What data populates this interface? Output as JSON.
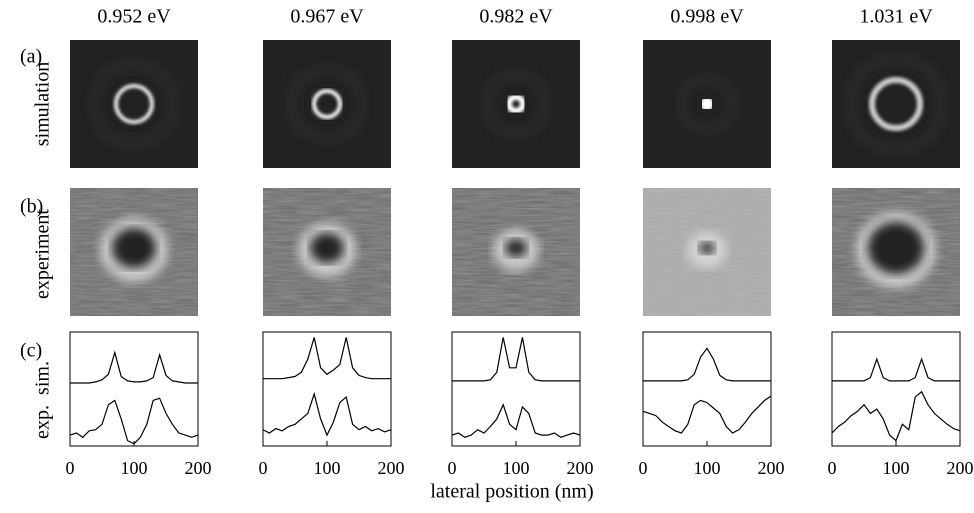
{
  "row_labels": [
    "(a)",
    "(b)",
    "(c)"
  ],
  "row_titles": [
    "simulation",
    "experiment"
  ],
  "trace_labels": [
    "sim.",
    "exp."
  ],
  "xlabel": "lateral position (nm)",
  "chart_data": [
    {
      "type": "line",
      "title": "0.952 eV",
      "x": [
        0,
        10,
        20,
        30,
        40,
        50,
        60,
        70,
        80,
        90,
        100,
        110,
        120,
        130,
        140,
        150,
        160,
        170,
        180,
        190,
        200
      ],
      "xlim": [
        0,
        200
      ],
      "xticks": [
        0,
        100,
        200
      ],
      "ylim": [
        0,
        1.05
      ],
      "series": [
        {
          "color": "#000000",
          "values": [
            0.58,
            0.58,
            0.58,
            0.58,
            0.59,
            0.61,
            0.66,
            0.86,
            0.64,
            0.6,
            0.59,
            0.59,
            0.6,
            0.63,
            0.84,
            0.65,
            0.6,
            0.59,
            0.58,
            0.58,
            0.58
          ]
        },
        {
          "color": "#000000",
          "values": [
            0.1,
            0.12,
            0.08,
            0.14,
            0.15,
            0.2,
            0.38,
            0.42,
            0.25,
            0.05,
            0.02,
            0.08,
            0.2,
            0.42,
            0.44,
            0.3,
            0.2,
            0.12,
            0.1,
            0.08,
            0.1
          ]
        }
      ]
    },
    {
      "type": "line",
      "title": "0.967 eV",
      "x": [
        0,
        10,
        20,
        30,
        40,
        50,
        60,
        70,
        80,
        90,
        100,
        110,
        120,
        130,
        140,
        150,
        160,
        170,
        180,
        190,
        200
      ],
      "xlim": [
        0,
        200
      ],
      "xticks": [
        0,
        100,
        200
      ],
      "ylim": [
        0,
        1.05
      ],
      "series": [
        {
          "color": "#000000",
          "values": [
            0.62,
            0.62,
            0.62,
            0.62,
            0.63,
            0.64,
            0.68,
            0.8,
            1.0,
            0.72,
            0.66,
            0.7,
            0.75,
            1.0,
            0.72,
            0.65,
            0.63,
            0.62,
            0.62,
            0.62,
            0.62
          ]
        },
        {
          "color": "#000000",
          "values": [
            0.15,
            0.12,
            0.16,
            0.14,
            0.18,
            0.2,
            0.25,
            0.3,
            0.48,
            0.25,
            0.1,
            0.22,
            0.4,
            0.45,
            0.2,
            0.15,
            0.18,
            0.14,
            0.16,
            0.13,
            0.15
          ]
        }
      ]
    },
    {
      "type": "line",
      "title": "0.982 eV",
      "x": [
        0,
        10,
        20,
        30,
        40,
        50,
        60,
        70,
        80,
        90,
        100,
        110,
        120,
        130,
        140,
        150,
        160,
        170,
        180,
        190,
        200
      ],
      "xlim": [
        0,
        200
      ],
      "xticks": [
        0,
        100,
        200
      ],
      "ylim": [
        0,
        1.05
      ],
      "series": [
        {
          "color": "#000000",
          "values": [
            0.6,
            0.6,
            0.6,
            0.6,
            0.6,
            0.6,
            0.61,
            0.68,
            1.0,
            0.72,
            0.72,
            1.0,
            0.68,
            0.61,
            0.6,
            0.6,
            0.6,
            0.6,
            0.6,
            0.6,
            0.6
          ]
        },
        {
          "color": "#000000",
          "values": [
            0.1,
            0.12,
            0.08,
            0.1,
            0.15,
            0.12,
            0.18,
            0.25,
            0.38,
            0.2,
            0.15,
            0.36,
            0.3,
            0.12,
            0.1,
            0.1,
            0.12,
            0.08,
            0.1,
            0.12,
            0.1
          ]
        }
      ]
    },
    {
      "type": "line",
      "title": "0.998 eV",
      "x": [
        0,
        10,
        20,
        30,
        40,
        50,
        60,
        70,
        80,
        90,
        100,
        110,
        120,
        130,
        140,
        150,
        160,
        170,
        180,
        190,
        200
      ],
      "xlim": [
        0,
        200
      ],
      "xticks": [
        0,
        100,
        200
      ],
      "ylim": [
        0,
        1.05
      ],
      "series": [
        {
          "color": "#000000",
          "values": [
            0.6,
            0.6,
            0.6,
            0.6,
            0.6,
            0.6,
            0.6,
            0.61,
            0.66,
            0.82,
            0.9,
            0.8,
            0.65,
            0.61,
            0.6,
            0.6,
            0.6,
            0.6,
            0.6,
            0.6,
            0.6
          ]
        },
        {
          "color": "#000000",
          "values": [
            0.32,
            0.3,
            0.28,
            0.22,
            0.18,
            0.14,
            0.12,
            0.2,
            0.38,
            0.42,
            0.4,
            0.35,
            0.3,
            0.18,
            0.12,
            0.15,
            0.22,
            0.3,
            0.36,
            0.42,
            0.46
          ]
        }
      ]
    },
    {
      "type": "line",
      "title": "1.031 eV",
      "x": [
        0,
        10,
        20,
        30,
        40,
        50,
        60,
        70,
        80,
        90,
        100,
        110,
        120,
        130,
        140,
        150,
        160,
        170,
        180,
        190,
        200
      ],
      "xlim": [
        0,
        200
      ],
      "xticks": [
        0,
        100,
        200
      ],
      "ylim": [
        0,
        1.05
      ],
      "series": [
        {
          "color": "#000000",
          "values": [
            0.6,
            0.6,
            0.6,
            0.6,
            0.6,
            0.6,
            0.63,
            0.8,
            0.63,
            0.6,
            0.6,
            0.6,
            0.6,
            0.63,
            0.8,
            0.63,
            0.6,
            0.6,
            0.6,
            0.6,
            0.6
          ]
        },
        {
          "color": "#000000",
          "values": [
            0.12,
            0.18,
            0.22,
            0.28,
            0.32,
            0.38,
            0.3,
            0.34,
            0.25,
            0.1,
            0.05,
            0.2,
            0.15,
            0.45,
            0.5,
            0.38,
            0.3,
            0.25,
            0.2,
            0.16,
            0.14
          ]
        }
      ]
    }
  ]
}
